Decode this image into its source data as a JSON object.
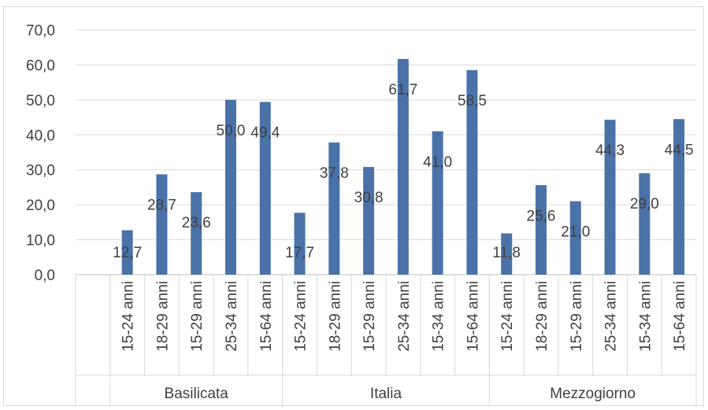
{
  "chart_data": {
    "type": "bar",
    "title": "",
    "xlabel": "",
    "ylabel": "",
    "ylim": [
      0,
      70
    ],
    "yticks": [
      0,
      10,
      20,
      30,
      40,
      50,
      60,
      70
    ],
    "ytick_labels": [
      "0,0",
      "10,0",
      "20,0",
      "30,0",
      "40,0",
      "50,0",
      "60,0",
      "70,0"
    ],
    "grid": true,
    "bar_color": "#4a72a8",
    "groups": [
      {
        "name": "Basilicata",
        "categories": [
          "15-24 anni",
          "18-29 anni",
          "15-29 anni",
          "25-34 anni",
          "15-64 anni"
        ],
        "values": [
          12.7,
          28.7,
          23.6,
          50.0,
          49.4
        ],
        "value_labels": [
          "12,7",
          "28,7",
          "23,6",
          "50,0",
          "49,4"
        ]
      },
      {
        "name": "Italia",
        "categories": [
          "15-24 anni",
          "18-29 anni",
          "15-29 anni",
          "25-34 anni",
          "15-34 anni",
          "15-64 anni"
        ],
        "values": [
          17.7,
          37.8,
          30.8,
          61.7,
          41.0,
          58.5
        ],
        "value_labels": [
          "17,7",
          "37,8",
          "30,8",
          "61,7",
          "41,0",
          "58,5"
        ]
      },
      {
        "name": "Mezzogiorno",
        "categories": [
          "15-24 anni",
          "18-29 anni",
          "15-29 anni",
          "25-34 anni",
          "15-34 anni",
          "15-64 anni"
        ],
        "values": [
          11.8,
          25.6,
          21.0,
          44.3,
          29.0,
          44.5
        ],
        "value_labels": [
          "11,8",
          "25,6",
          "21,0",
          "44,3",
          "29,0",
          "44,5"
        ]
      }
    ]
  }
}
